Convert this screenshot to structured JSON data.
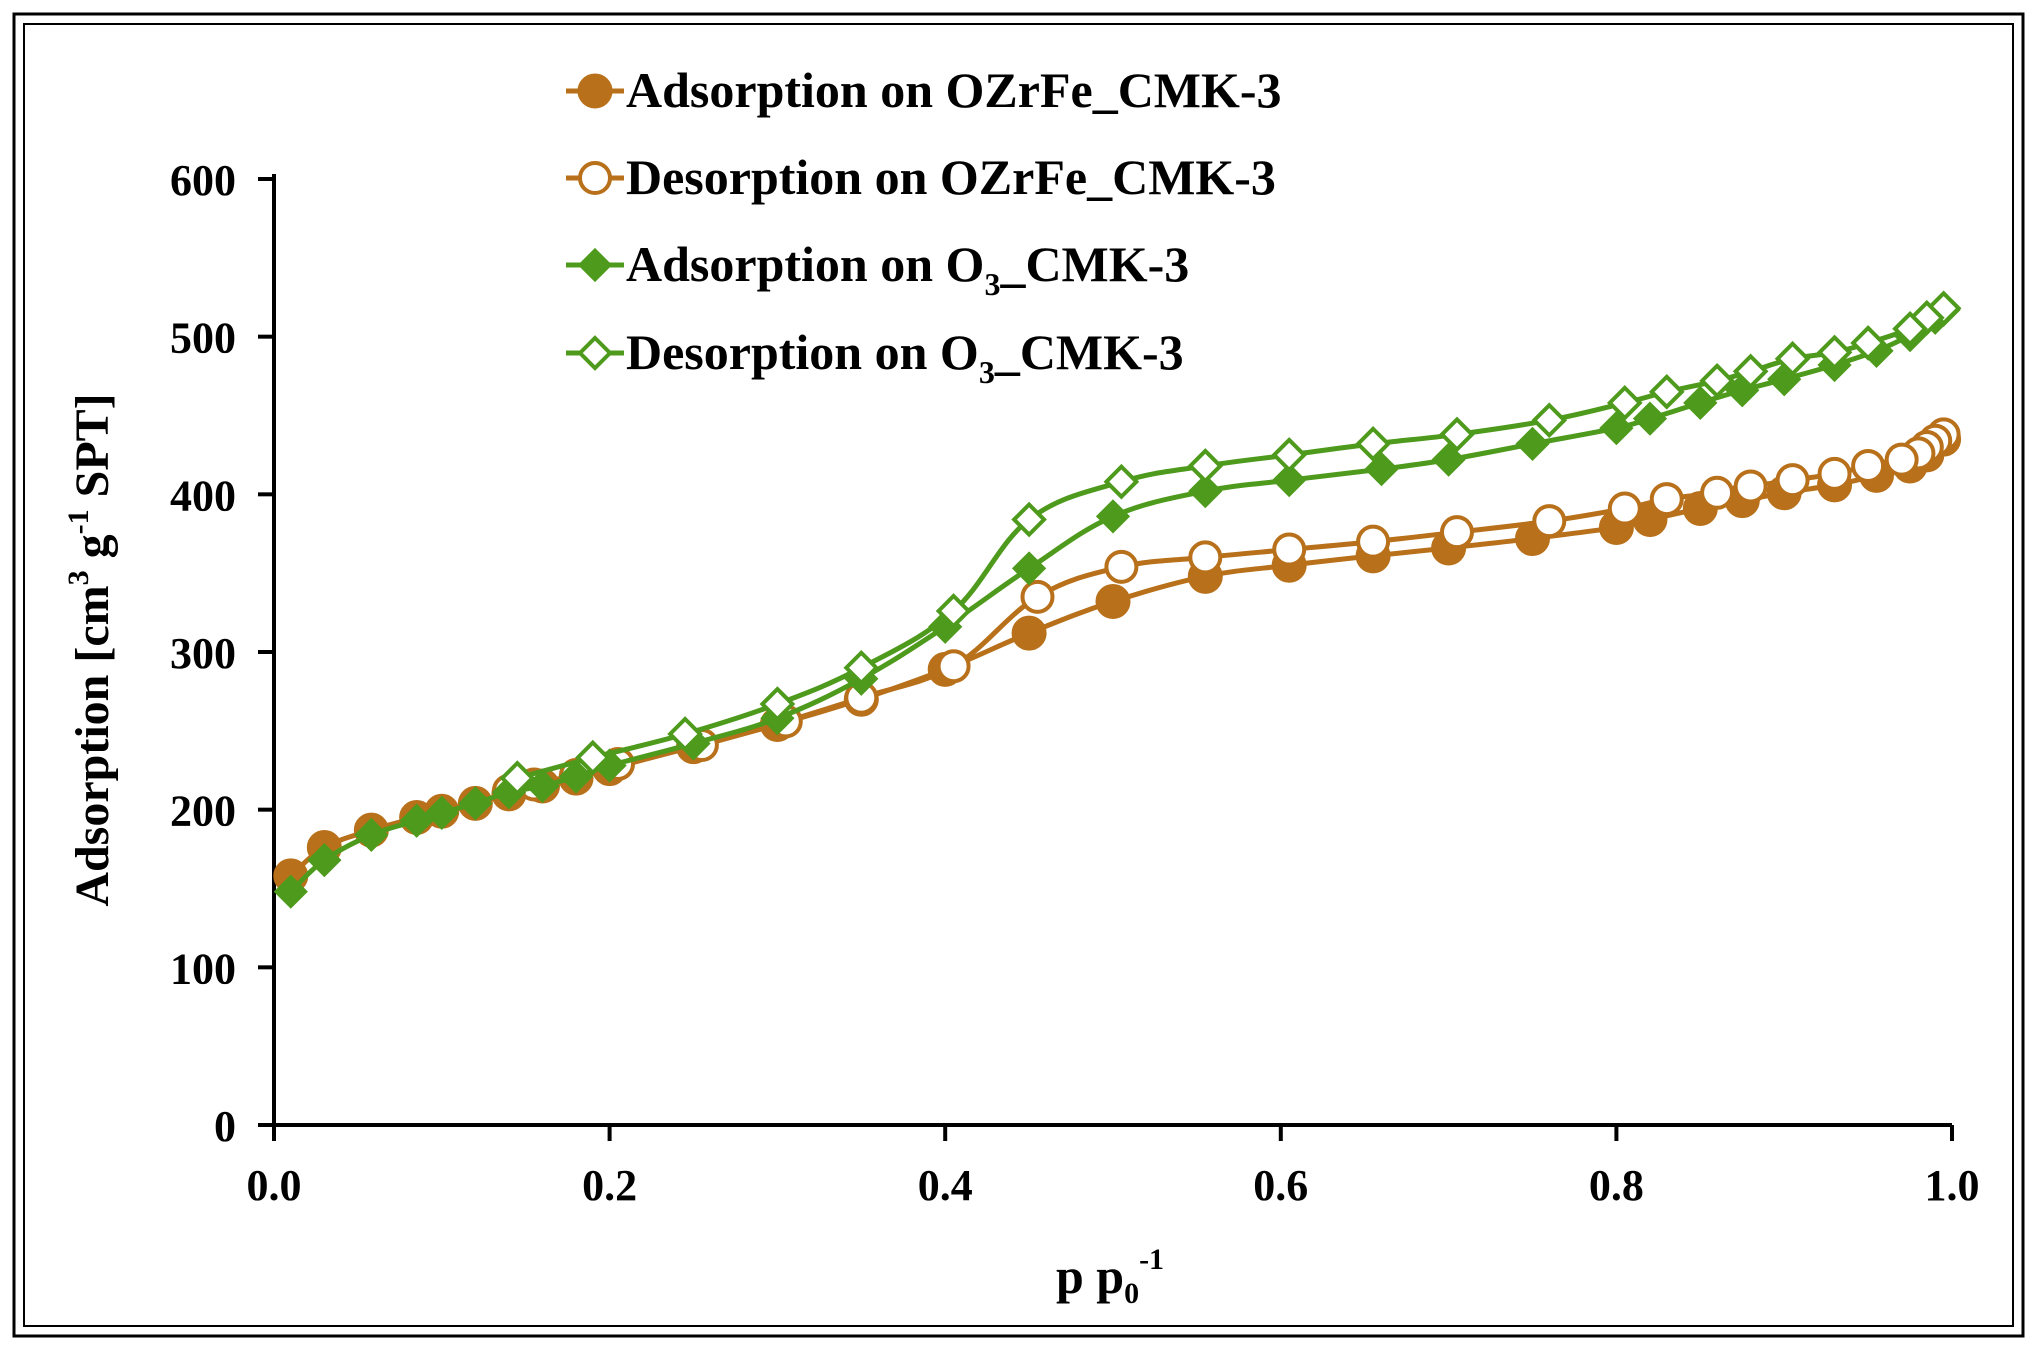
{
  "chart_data": {
    "type": "line",
    "title": "",
    "xlabel": {
      "base": "p p",
      "sub": "0",
      "sup": "-1"
    },
    "ylabel": {
      "part1": "Adsorption [cm",
      "sup1": "3",
      "part2": " g",
      "sup2": "-1",
      "part3": " SPT]"
    },
    "xlim": [
      0.0,
      1.0
    ],
    "ylim": [
      0,
      600
    ],
    "xticks": [
      "0.0",
      "0.2",
      "0.4",
      "0.6",
      "0.8",
      "1.0"
    ],
    "xtick_values": [
      0.0,
      0.2,
      0.4,
      0.6,
      0.8,
      1.0
    ],
    "yticks": [
      "0",
      "100",
      "200",
      "300",
      "400",
      "500",
      "600"
    ],
    "ytick_values": [
      0,
      100,
      200,
      300,
      400,
      500,
      600
    ],
    "grid": false,
    "legend_position": "top",
    "series": [
      {
        "name": "Adsorption on OZrFe_CMK-3",
        "legend": {
          "text": "Adsorption on OZrFe_CMK-3",
          "sub": "",
          "tail": ""
        },
        "color": "#b8701a",
        "marker": "circle",
        "filled": true,
        "x": [
          0.01,
          0.03,
          0.058,
          0.085,
          0.1,
          0.12,
          0.14,
          0.16,
          0.18,
          0.2,
          0.25,
          0.3,
          0.35,
          0.4,
          0.45,
          0.5,
          0.555,
          0.605,
          0.655,
          0.7,
          0.75,
          0.8,
          0.82,
          0.85,
          0.875,
          0.9,
          0.93,
          0.955,
          0.975,
          0.985,
          0.995
        ],
        "y": [
          158,
          176,
          187,
          195,
          199,
          204,
          210,
          215,
          220,
          226,
          240,
          254,
          270,
          289,
          312,
          332,
          348,
          355,
          361,
          366,
          372,
          379,
          384,
          391,
          396,
          401,
          406,
          412,
          418,
          425,
          435
        ]
      },
      {
        "name": "Desorption on OZrFe_CMK-3",
        "legend": {
          "text": "Desorption on OZrFe_CMK-3",
          "sub": "",
          "tail": ""
        },
        "color": "#b8701a",
        "marker": "circle",
        "filled": false,
        "x": [
          0.995,
          0.99,
          0.985,
          0.98,
          0.97,
          0.95,
          0.93,
          0.905,
          0.88,
          0.86,
          0.83,
          0.805,
          0.76,
          0.705,
          0.655,
          0.605,
          0.555,
          0.505,
          0.455,
          0.405,
          0.35,
          0.305,
          0.255,
          0.205,
          0.18,
          0.155,
          0.14
        ],
        "y": [
          438,
          434,
          430,
          426,
          422,
          418,
          413,
          409,
          405,
          401,
          397,
          391,
          383,
          376,
          370,
          365,
          360,
          354,
          335,
          291,
          271,
          256,
          241,
          229,
          222,
          216,
          212
        ]
      },
      {
        "name": "Adsorption on O3_CMK-3",
        "legend": {
          "text": "Adsorption on O",
          "sub": "3",
          "tail": "_CMK-3"
        },
        "color": "#4e9a1c",
        "marker": "diamond",
        "filled": true,
        "x": [
          0.01,
          0.03,
          0.058,
          0.085,
          0.1,
          0.12,
          0.14,
          0.16,
          0.18,
          0.2,
          0.25,
          0.3,
          0.35,
          0.4,
          0.45,
          0.5,
          0.555,
          0.605,
          0.66,
          0.7,
          0.75,
          0.8,
          0.82,
          0.85,
          0.875,
          0.9,
          0.93,
          0.955,
          0.975,
          0.99,
          0.995
        ],
        "y": [
          148,
          168,
          184,
          193,
          198,
          204,
          211,
          215,
          221,
          228,
          242,
          258,
          283,
          316,
          353,
          386,
          402,
          409,
          416,
          422,
          432,
          442,
          448,
          458,
          466,
          473,
          482,
          491,
          501,
          512,
          517
        ]
      },
      {
        "name": "Desorption on O3_CMK-3",
        "legend": {
          "text": "Desorption on ",
          "sub": "3",
          "tail": "_CMK-3",
          "subbase": "O"
        },
        "color": "#4e9a1c",
        "marker": "diamond",
        "filled": false,
        "x": [
          0.995,
          0.985,
          0.975,
          0.95,
          0.93,
          0.905,
          0.88,
          0.86,
          0.83,
          0.805,
          0.76,
          0.705,
          0.655,
          0.605,
          0.555,
          0.505,
          0.45,
          0.405,
          0.35,
          0.3,
          0.245,
          0.19,
          0.145
        ],
        "y": [
          518,
          512,
          505,
          496,
          490,
          486,
          478,
          472,
          465,
          458,
          447,
          438,
          432,
          425,
          418,
          408,
          384,
          326,
          290,
          267,
          248,
          233,
          220
        ]
      }
    ]
  }
}
